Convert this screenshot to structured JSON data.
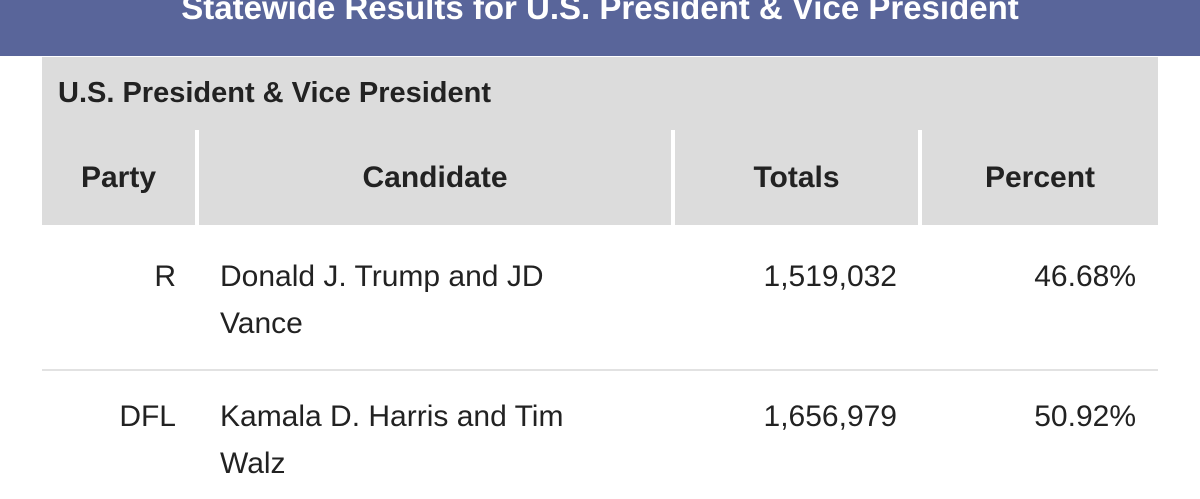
{
  "header": {
    "title": "Statewide Results for U.S. President & Vice President"
  },
  "table": {
    "caption": "U.S. President & Vice President",
    "columns": [
      "Party",
      "Candidate",
      "Totals",
      "Percent"
    ],
    "rows": [
      [
        "R",
        "Donald J. Trump and JD Vance",
        "1,519,032",
        "46.68%"
      ],
      [
        "DFL",
        "Kamala D. Harris and Tim Walz",
        "1,656,979",
        "50.92%"
      ]
    ]
  }
}
